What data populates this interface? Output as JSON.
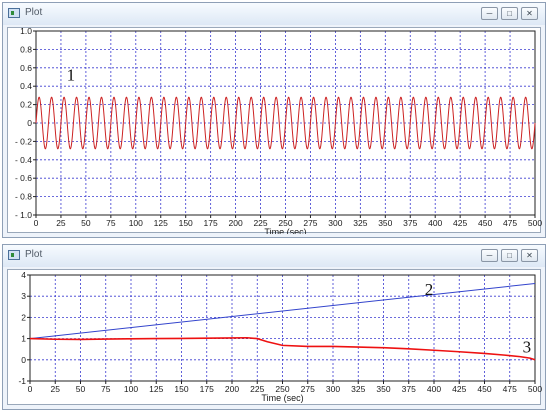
{
  "windows": [
    {
      "title": "Plot"
    },
    {
      "title": "Plot"
    }
  ],
  "chart_data": [
    {
      "type": "line",
      "title": "",
      "xlabel": "Time (sec)",
      "ylabel": "",
      "xlim": [
        0,
        500
      ],
      "ylim": [
        -1.0,
        1.0
      ],
      "xticks": [
        0,
        25,
        50,
        75,
        100,
        125,
        150,
        175,
        200,
        225,
        250,
        275,
        300,
        325,
        350,
        375,
        400,
        425,
        450,
        475,
        500
      ],
      "yticks": [
        1.0,
        0.8,
        0.6,
        0.4,
        0.2,
        0,
        -0.2,
        -0.4,
        -0.6,
        -0.8,
        -1.0
      ],
      "ytick_labels": [
        "1.0",
        "0.8",
        "0.6",
        "0.4",
        "0.2",
        "0",
        "- 0.2",
        "- 0.4",
        "- 0.6",
        "- 0.8",
        "- 1.0"
      ],
      "grid": true,
      "series": [
        {
          "color": "#cc2222",
          "kind": "sinusoid",
          "amplitude": 0.28,
          "period": 12.5,
          "x_start": 0,
          "x_end": 500
        }
      ],
      "annotations": [
        {
          "text": "1",
          "x": 35,
          "y": 0.46
        }
      ]
    },
    {
      "type": "line",
      "title": "",
      "xlabel": "Time (sec)",
      "ylabel": "",
      "xlim": [
        0,
        500
      ],
      "ylim": [
        -1,
        4
      ],
      "xticks": [
        0,
        25,
        50,
        75,
        100,
        125,
        150,
        175,
        200,
        225,
        250,
        275,
        300,
        325,
        350,
        375,
        400,
        425,
        450,
        475,
        500
      ],
      "yticks": [
        4,
        3,
        2,
        1,
        0,
        -1
      ],
      "ytick_labels": [
        "4",
        "3",
        "2",
        "1",
        "0",
        "-1"
      ],
      "grid": true,
      "series": [
        {
          "color": "#3344cc",
          "x": [
            0,
            500
          ],
          "y": [
            1.0,
            3.6
          ]
        },
        {
          "color": "#ee1111",
          "x": [
            0,
            25,
            50,
            75,
            100,
            125,
            150,
            175,
            200,
            215,
            225,
            235,
            250,
            275,
            300,
            325,
            350,
            375,
            400,
            425,
            450,
            470,
            485,
            495,
            500
          ],
          "y": [
            1.0,
            0.97,
            0.96,
            0.98,
            0.99,
            1.0,
            1.01,
            1.02,
            1.03,
            1.04,
            1.0,
            0.85,
            0.68,
            0.63,
            0.63,
            0.6,
            0.57,
            0.52,
            0.45,
            0.38,
            0.3,
            0.22,
            0.15,
            0.08,
            0.0
          ]
        }
      ],
      "annotations": [
        {
          "text": "2",
          "x": 395,
          "y": 3.05
        },
        {
          "text": "3",
          "x": 492,
          "y": 0.35
        }
      ]
    }
  ]
}
